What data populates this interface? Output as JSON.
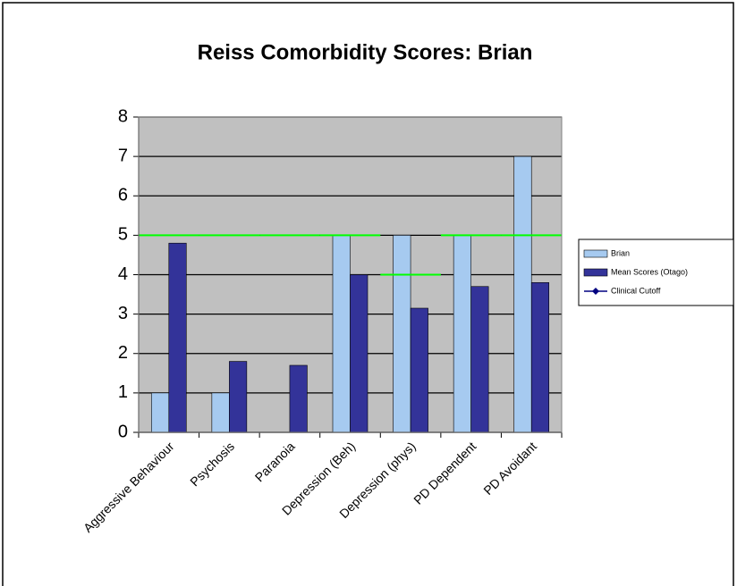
{
  "chart_data": {
    "type": "bar",
    "title": "Reiss Comorbidity Scores: Brian",
    "categories": [
      "Aggressive Behaviour",
      "Psychosis",
      "Paranoia",
      "Depression (Beh)",
      "Depression (phys)",
      "PD Dependent",
      "PD Avoidant"
    ],
    "series": [
      {
        "name": "Brian",
        "color": "#a6caf0",
        "values": [
          1,
          1,
          0,
          5,
          5,
          5,
          7
        ]
      },
      {
        "name": "Mean Scores (Otago)",
        "color": "#333399",
        "values": [
          4.8,
          1.8,
          1.7,
          4.0,
          3.15,
          3.7,
          3.8
        ]
      },
      {
        "name": "Clinical Cutoff",
        "color": "#00ff00",
        "type": "line",
        "values": [
          5,
          5,
          5,
          5,
          4,
          5,
          5
        ]
      }
    ],
    "ylim": [
      0,
      8
    ],
    "yticks": [
      0,
      1,
      2,
      3,
      4,
      5,
      6,
      7,
      8
    ],
    "grid": true,
    "legend": "right"
  }
}
